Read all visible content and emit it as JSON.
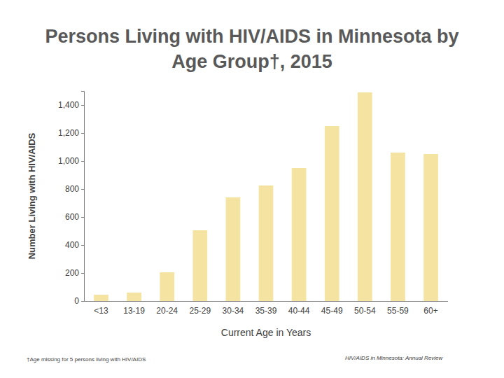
{
  "chart_data": {
    "type": "bar",
    "title": "Persons Living with HIV/AIDS in Minnesota by Age Group†, 2015",
    "x_label": "Current Age in Years",
    "y_label": "Number Living with HIV/AIDS",
    "categories": [
      "<13",
      "13-19",
      "20-24",
      "25-29",
      "30-34",
      "35-39",
      "40-44",
      "45-49",
      "50-54",
      "55-59",
      "60+"
    ],
    "values": [
      45,
      60,
      205,
      505,
      740,
      825,
      950,
      1250,
      1490,
      1060,
      1050
    ],
    "color": "#f5e3a1",
    "ylim": [
      0,
      1500
    ],
    "yticks": [
      0,
      200,
      400,
      600,
      800,
      {
        "value": 1000,
        "label": "1,000"
      },
      {
        "value": 1200,
        "label": "1,200"
      },
      {
        "value": 1400,
        "label": "1,400"
      }
    ],
    "grid": false,
    "annotations": [
      "†Age missing for 5 persons living with HIV/AIDS",
      "HIV/AIDS in Minnesota: Annual Review"
    ]
  }
}
